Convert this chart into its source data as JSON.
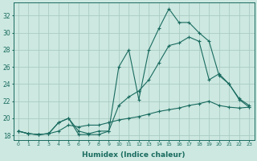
{
  "title": "",
  "xlabel": "Humidex (Indice chaleur)",
  "bg_color": "#cce8e0",
  "grid_color": "#aaccc4",
  "line_color": "#1a6b60",
  "xlim": [
    -0.5,
    23.5
  ],
  "ylim": [
    17.5,
    33.5
  ],
  "xticks": [
    0,
    1,
    2,
    3,
    4,
    5,
    6,
    7,
    8,
    9,
    10,
    11,
    12,
    13,
    14,
    15,
    16,
    17,
    18,
    19,
    20,
    21,
    22,
    23
  ],
  "yticks": [
    18,
    20,
    22,
    24,
    26,
    28,
    30,
    32
  ],
  "line1_x": [
    0,
    1,
    2,
    3,
    4,
    5,
    6,
    7,
    8,
    9,
    10,
    11,
    12,
    13,
    14,
    15,
    16,
    17,
    18,
    19,
    20,
    21,
    22,
    23
  ],
  "line1_y": [
    18.5,
    18.2,
    18.1,
    18.2,
    19.5,
    20.0,
    18.1,
    18.1,
    18.1,
    18.5,
    26.0,
    28.0,
    22.2,
    28.0,
    30.5,
    32.8,
    31.2,
    31.2,
    30.0,
    29.0,
    25.0,
    24.0,
    22.2,
    21.3
  ],
  "line2_x": [
    0,
    1,
    2,
    3,
    4,
    5,
    6,
    7,
    8,
    9,
    10,
    11,
    12,
    13,
    14,
    15,
    16,
    17,
    18,
    19,
    20,
    21,
    22,
    23
  ],
  "line2_y": [
    18.5,
    18.2,
    18.1,
    18.2,
    19.5,
    20.0,
    18.5,
    18.2,
    18.5,
    18.5,
    21.5,
    22.5,
    23.2,
    24.5,
    26.5,
    28.5,
    28.8,
    29.5,
    29.0,
    24.5,
    25.2,
    24.0,
    22.3,
    21.5
  ],
  "line3_x": [
    0,
    1,
    2,
    3,
    4,
    5,
    6,
    7,
    8,
    9,
    10,
    11,
    12,
    13,
    14,
    15,
    16,
    17,
    18,
    19,
    20,
    21,
    22,
    23
  ],
  "line3_y": [
    18.5,
    18.2,
    18.1,
    18.2,
    18.5,
    19.2,
    19.0,
    19.2,
    19.2,
    19.5,
    19.8,
    20.0,
    20.2,
    20.5,
    20.8,
    21.0,
    21.2,
    21.5,
    21.7,
    22.0,
    21.5,
    21.3,
    21.2,
    21.3
  ]
}
